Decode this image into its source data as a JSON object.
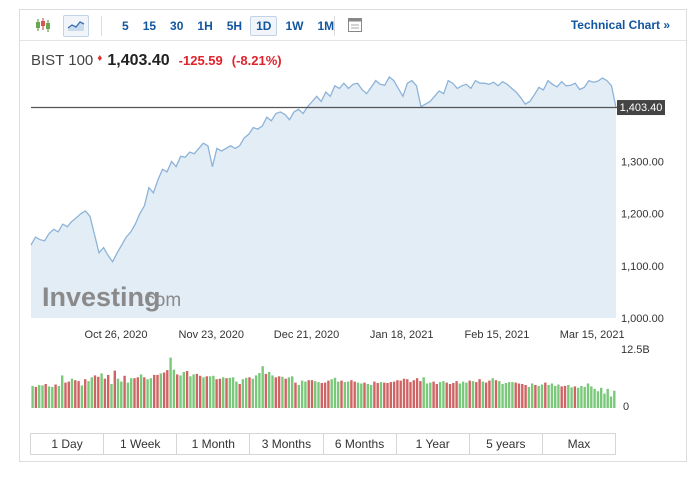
{
  "toolbar": {
    "icons": [
      "candlestick-chart-icon",
      "area-chart-icon",
      "indicator-panel-icon"
    ],
    "timeframes": [
      "5",
      "15",
      "30",
      "1H",
      "5H",
      "1D",
      "1W",
      "1M"
    ],
    "active_timeframe": "1D",
    "technical_chart_label": "Technical Chart »"
  },
  "quote": {
    "name": "BIST 100",
    "price": "1,403.40",
    "change": "-125.59",
    "change_pct": "(-8.21%)",
    "direction": "down"
  },
  "watermark": {
    "brand": "Investing",
    "suffix": ".com"
  },
  "ranges": [
    "1 Day",
    "1 Week",
    "1 Month",
    "3 Months",
    "6 Months",
    "1 Year",
    "5 years",
    "Max"
  ],
  "colors": {
    "line": "#8db3d8",
    "area": "#e3edf6",
    "up": "#7ac97a",
    "down": "#d06464",
    "accent": "#1256a0",
    "neg": "#e0222b"
  },
  "chart_data": {
    "type": "area",
    "title": "BIST 100",
    "x_range": [
      "2020-10-01",
      "2021-03-22"
    ],
    "x_tick_labels": [
      "Oct 26, 2020",
      "Nov 23, 2020",
      "Dec 21, 2020",
      "Jan 18, 2021",
      "Feb 15, 2021",
      "Mar 15, 2021"
    ],
    "y_tick_labels": [
      "1,000.00",
      "1,100.00",
      "1,200.00",
      "1,300.00"
    ],
    "ylim": [
      1000,
      1460
    ],
    "last_price": 1403.4,
    "last_price_label": "1,403.40",
    "grid": false,
    "series": [
      {
        "values": [
          1140,
          1155,
          1150,
          1148,
          1162,
          1170,
          1165,
          1180,
          1175,
          1185,
          1192,
          1200,
          1205,
          1195,
          1160,
          1125,
          1135,
          1120,
          1108,
          1125,
          1140,
          1155,
          1165,
          1180,
          1200,
          1215,
          1250,
          1240,
          1265,
          1285,
          1280,
          1300,
          1290,
          1310,
          1308,
          1318,
          1315,
          1325,
          1335,
          1330,
          1290,
          1325,
          1320,
          1325,
          1330,
          1325,
          1330,
          1345,
          1352,
          1365,
          1362,
          1368,
          1385,
          1378,
          1392,
          1395,
          1390,
          1380,
          1395,
          1400,
          1392,
          1405,
          1415,
          1425,
          1415,
          1433,
          1425,
          1445,
          1440,
          1450,
          1440,
          1448,
          1450,
          1438,
          1430,
          1442,
          1455,
          1448,
          1446,
          1462,
          1455,
          1440,
          1425,
          1450,
          1455,
          1445,
          1405,
          1410,
          1415,
          1425,
          1435,
          1430,
          1455,
          1450,
          1440,
          1445,
          1448,
          1440,
          1455,
          1450,
          1450,
          1448,
          1452,
          1445,
          1453,
          1448,
          1440,
          1433,
          1422,
          1410,
          1415,
          1428,
          1442,
          1437,
          1455,
          1448,
          1443,
          1453,
          1445,
          1446,
          1450,
          1438,
          1442,
          1455,
          1452,
          1454,
          1460,
          1455,
          1445,
          1403.4
        ]
      }
    ],
    "volume": {
      "axis_labels": [
        "12.5B",
        "0"
      ],
      "max": 12.5,
      "values": [
        4.6,
        4.4,
        4.8,
        4.7,
        5.0,
        4.5,
        4.4,
        4.9,
        4.6,
        6.8,
        5.3,
        5.5,
        6.1,
        5.8,
        5.6,
        4.7,
        6.0,
        5.6,
        6.4,
        6.8,
        6.5,
        7.2,
        6.1,
        6.9,
        5.0,
        7.8,
        6.1,
        5.5,
        6.7,
        5.3,
        6.2,
        6.2,
        6.4,
        7.0,
        6.4,
        6.0,
        6.2,
        6.9,
        6.9,
        7.2,
        7.4,
        7.9,
        10.5,
        8.0,
        7.0,
        6.8,
        7.5,
        7.7,
        6.6,
        7.0,
        7.1,
        6.7,
        6.4,
        6.6,
        6.6,
        6.7,
        6.0,
        6.1,
        6.4,
        6.2,
        6.3,
        6.4,
        5.5,
        5.0,
        6.0,
        6.3,
        6.4,
        6.1,
        6.8,
        7.3,
        8.7,
        7.1,
        7.5,
        6.8,
        6.4,
        6.6,
        6.5,
        6.1,
        6.4,
        6.6,
        5.3,
        4.8,
        5.7,
        5.5,
        5.8,
        5.8,
        5.6,
        5.4,
        5.2,
        5.3,
        5.7,
        6.0,
        6.3,
        5.5,
        5.7,
        5.4,
        5.5,
        5.8,
        5.5,
        5.3,
        5.1,
        5.3,
        5.0,
        4.8,
        5.5,
        5.2,
        5.4,
        5.3,
        5.2,
        5.4,
        5.5,
        5.8,
        5.7,
        6.1,
        6.0,
        5.4,
        5.8,
        6.2,
        5.6,
        6.4,
        5.1,
        5.3,
        5.5,
        5.0,
        5.4,
        5.6,
        5.3,
        5.0,
        5.2,
        5.6,
        5.1,
        5.5,
        5.3,
        5.7,
        5.6,
        5.4,
        6.0,
        5.5,
        5.3,
        5.7,
        6.2,
        5.8,
        5.6,
        5.0,
        5.2,
        5.4,
        5.4,
        5.3,
        5.1,
        5.0,
        4.8,
        4.4,
        5.1,
        4.8,
        4.6,
        4.9,
        5.3,
        4.8,
        5.1,
        4.6,
        4.9,
        4.5,
        4.6,
        4.8,
        4.3,
        4.5,
        4.2,
        4.6,
        4.4,
        5.1,
        4.5,
        4.0,
        3.5,
        4.2,
        3.0,
        4.0,
        2.4,
        3.6
      ],
      "directions": "uduuduuduuddudduduuddudduduuduudduduuddudduuduuduudduduudduduuuduuduuuuduudduduuduuudduuddduuuduudduuduuddudddddddddddduuudduudddduuududdudduduuuuudddduuduuduuuudduud"
    }
  }
}
